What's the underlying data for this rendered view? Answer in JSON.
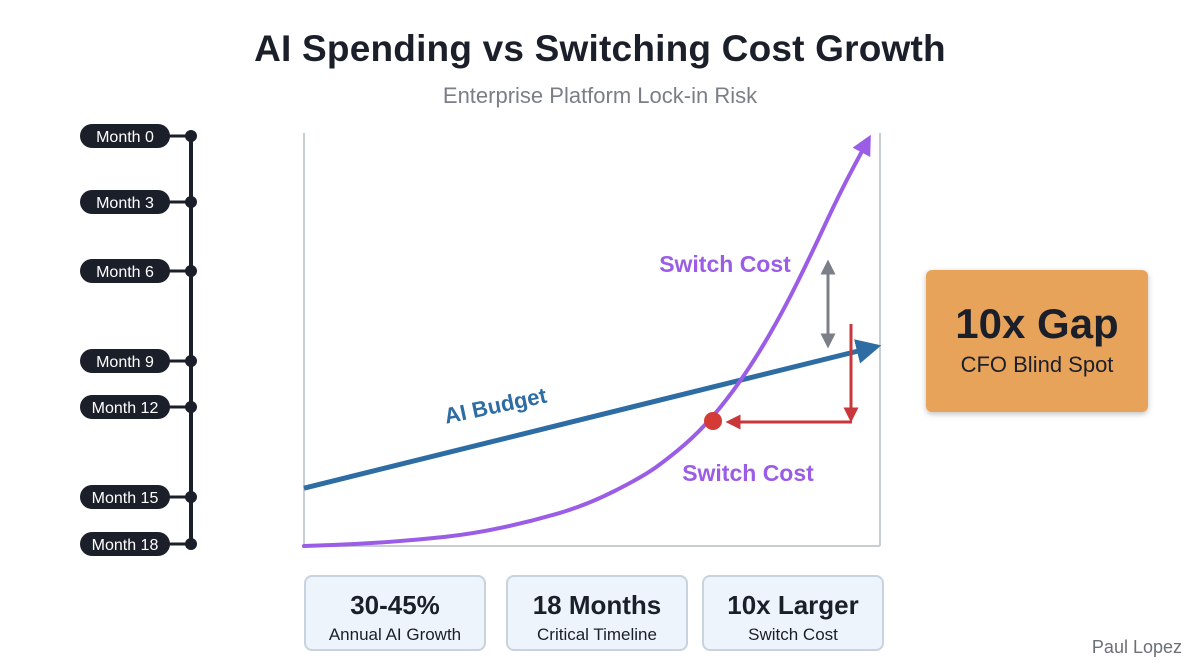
{
  "title": "AI Spending vs Switching Cost Growth",
  "subtitle": "Enterprise Platform Lock-in Risk",
  "timeline": {
    "months": [
      {
        "label": "Month 0",
        "month": 0
      },
      {
        "label": "Month 3",
        "month": 3
      },
      {
        "label": "Month 6",
        "month": 6
      },
      {
        "label": "Month 9",
        "month": 9
      },
      {
        "label": "Month 12",
        "month": 12
      },
      {
        "label": "Month 15",
        "month": 15
      },
      {
        "label": "Month 18",
        "month": 18
      }
    ]
  },
  "chart_data": {
    "type": "line",
    "title": "",
    "xlabel": "",
    "ylabel": "",
    "grid": false,
    "legend": "none",
    "series": [
      {
        "name": "AI Budget",
        "color": "#2e6da4",
        "style": "linear trend with arrowhead",
        "x": [
          0,
          1
        ],
        "y": [
          0.14,
          0.48
        ]
      },
      {
        "name": "Switch Cost",
        "color": "#9b5de5",
        "style": "exponential curve with arrowhead",
        "x": [
          0,
          0.1,
          0.2,
          0.3,
          0.4,
          0.5,
          0.6,
          0.65,
          0.7,
          0.75,
          0.8,
          0.85,
          0.9,
          0.95,
          1.0
        ],
        "y": [
          0.0,
          0.005,
          0.015,
          0.03,
          0.06,
          0.1,
          0.17,
          0.22,
          0.28,
          0.36,
          0.46,
          0.58,
          0.72,
          0.87,
          1.0
        ]
      }
    ],
    "annotations": {
      "switch_cost_upper_label": "Switch Cost",
      "switch_cost_lower_label": "Switch Cost",
      "marker_color": "#d43a36",
      "gap_arrow_color": "#7b8088",
      "red_arrow_color": "#c9373a"
    }
  },
  "gap_box": {
    "title": "10x Gap",
    "subtitle": "CFO Blind Spot",
    "color": "#e8a35a"
  },
  "stats": [
    {
      "value": "30-45%",
      "label": "Annual AI Growth"
    },
    {
      "value": "18 Months",
      "label": "Critical Timeline"
    },
    {
      "value": "10x Larger",
      "label": "Switch Cost"
    }
  ],
  "author": "Paul Lopez"
}
